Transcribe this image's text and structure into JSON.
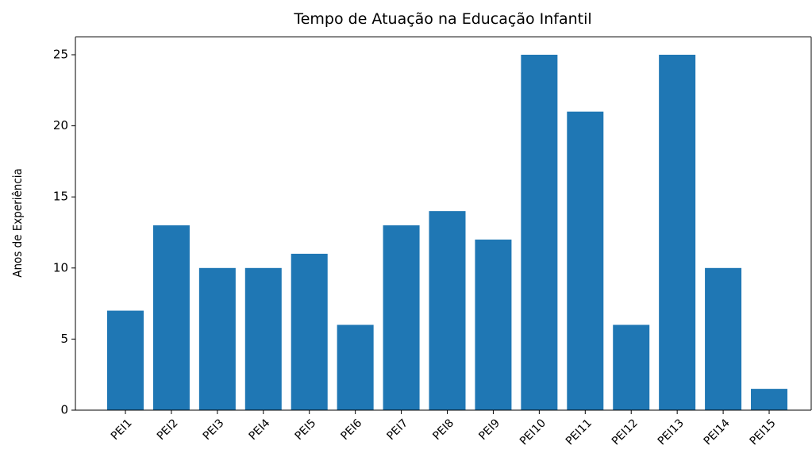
{
  "chart_data": {
    "type": "bar",
    "title": "Tempo de Atuação na Educação Infantil",
    "y_label": "Anos de Experiência",
    "categories": [
      "PEI1",
      "PEI2",
      "PEI3",
      "PEI4",
      "PEI5",
      "PEI6",
      "PEI7",
      "PEI8",
      "PEI9",
      "PEI10",
      "PEI11",
      "PEI12",
      "PEI13",
      "PEI14",
      "PEI15"
    ],
    "values": [
      7,
      13,
      10,
      10,
      11,
      6,
      13,
      14,
      12,
      25,
      21,
      6,
      25,
      10,
      1.5
    ],
    "color": "#1f77b4",
    "ylim": [
      0,
      26.25
    ],
    "yticks": [
      0,
      5,
      10,
      15,
      20,
      25
    ],
    "grid": false
  }
}
